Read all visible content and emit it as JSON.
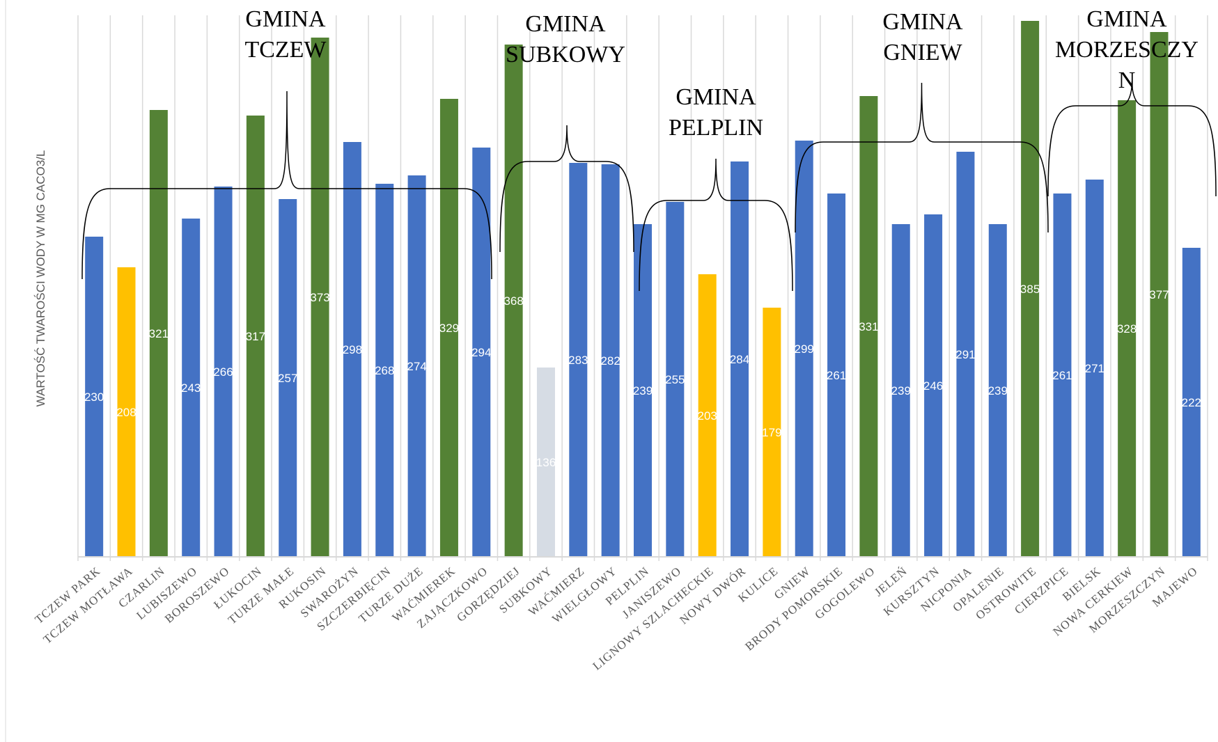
{
  "chart_data": {
    "type": "bar",
    "ylabel": "WARTOŚĆ TWAROŚCI WODY W MG CACO3/L",
    "xlabel": "",
    "ylim": [
      0,
      400
    ],
    "grid": "vertical gridlines",
    "legend": "none",
    "colors": {
      "blue": "#4472C4",
      "yellow": "#FFC000",
      "green": "#548235",
      "gray": "#D6DCE4",
      "grid": "#D9D9D9",
      "axis": "#D9D9D9",
      "text": "#595959"
    },
    "categories": [
      "TCZEW PARK",
      "TCZEW MOTŁAWA",
      "CZARLIN",
      "LUBISZEWO",
      "BOROSZEWO",
      "ŁUKOCIN",
      "TURZE MAŁE",
      "RUKOSIN",
      "SWAROŻYN",
      "SZCZERBIĘCIN",
      "TURZE DUŻE",
      "WAĆMIEREK",
      "ZAJĄCZKOWO",
      "GORZĘDZIEJ",
      "SUBKOWY",
      "WAĆMIERZ",
      "WIELGŁOWY",
      "PELPLIN",
      "JANISZEWO",
      "LIGNOWY SZLACHECKIE",
      "NOWY DWÓR",
      "KULICE",
      "GNIEW",
      "BRODY POMORSKIE",
      "GOGOLEWO",
      "JELEŃ",
      "KURSZTYN",
      "NICPONIA",
      "OPALENIE",
      "OSTROWITE",
      "CIERZPICE",
      "BIELSK",
      "NOWA CERKIEW",
      "MORZESZCZYN",
      "MAJEWO"
    ],
    "values": [
      230,
      208,
      321,
      243,
      266,
      317,
      257,
      373,
      298,
      268,
      274,
      329,
      294,
      368,
      136,
      283,
      282,
      239,
      255,
      203,
      284,
      179,
      299,
      261,
      331,
      239,
      246,
      291,
      239,
      385,
      261,
      271,
      328,
      377,
      222
    ],
    "bar_colors": [
      "blue",
      "yellow",
      "green",
      "blue",
      "blue",
      "green",
      "blue",
      "green",
      "blue",
      "blue",
      "blue",
      "green",
      "blue",
      "green",
      "gray",
      "blue",
      "blue",
      "blue",
      "blue",
      "yellow",
      "blue",
      "yellow",
      "blue",
      "blue",
      "green",
      "blue",
      "blue",
      "blue",
      "blue",
      "green",
      "blue",
      "blue",
      "green",
      "green",
      "blue"
    ],
    "annotations": [
      {
        "lines": [
          "GMINA",
          "TCZEW"
        ],
        "from": 0,
        "to": 12
      },
      {
        "lines": [
          "GMINA",
          "SUBKOWY"
        ],
        "from": 13,
        "to": 16
      },
      {
        "lines": [
          "GMINA",
          "PELPLIN"
        ],
        "from": 17,
        "to": 21
      },
      {
        "lines": [
          "GMINA",
          "GNIEW"
        ],
        "from": 22,
        "to": 29
      },
      {
        "lines": [
          "GMINA",
          "MORZESCZY",
          "N"
        ],
        "from": 30,
        "to": 34
      }
    ]
  }
}
